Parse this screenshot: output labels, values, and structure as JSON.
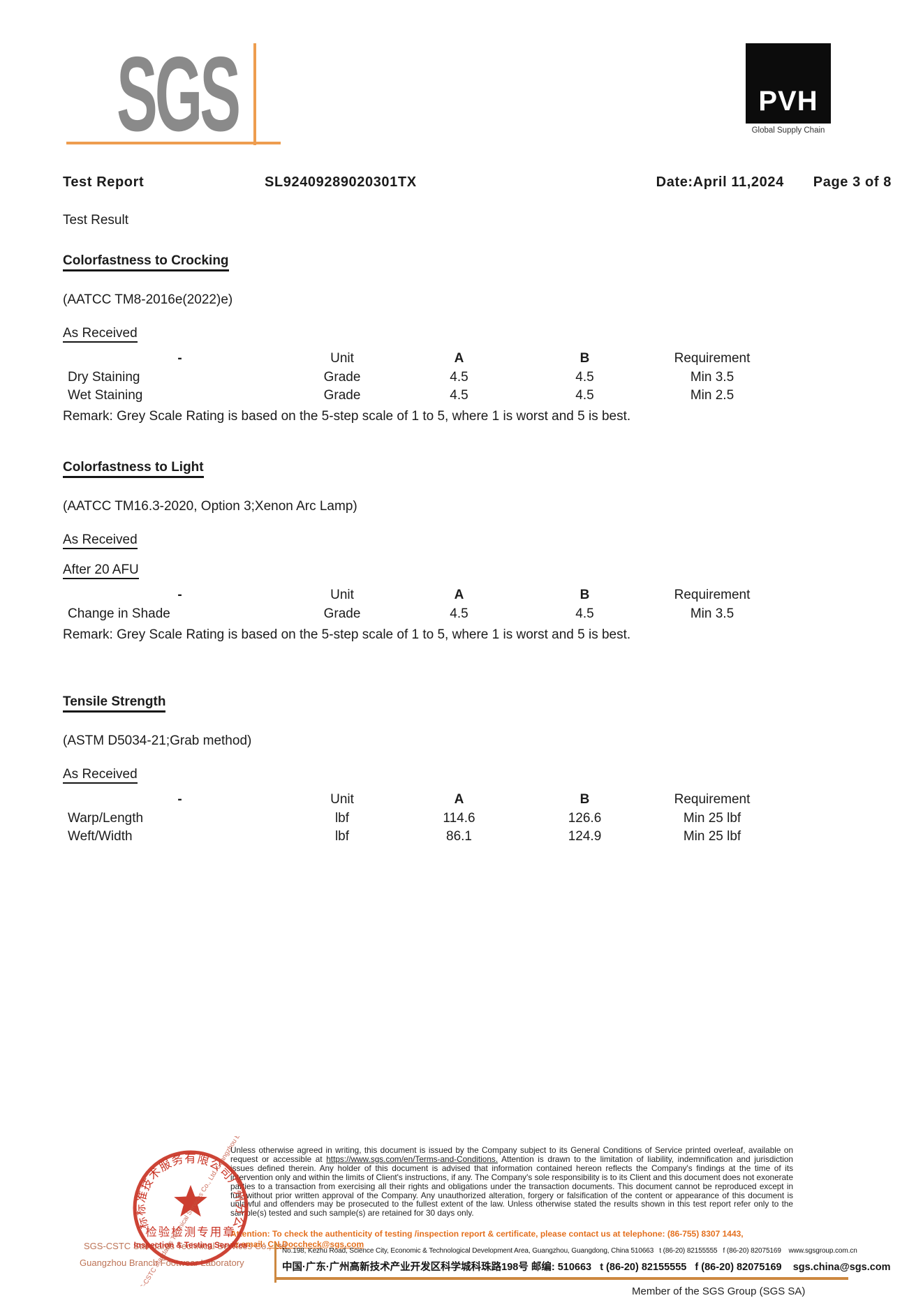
{
  "colors": {
    "sgs_gray": "#8a8a8a",
    "logo_orange": "#ee9d4f",
    "attention_orange": "#e4701e",
    "rule_orange": "#cd8840",
    "stamp_red": "#c93425",
    "company_tan": "#bd7356"
  },
  "logos": {
    "sgs_text": "SGS",
    "pvh_text": "PVH",
    "pvh_tagline": "Global Supply Chain"
  },
  "header": {
    "title": "Test Report",
    "report_no": "SL92409289020301TX",
    "date": "Date:April 11,2024",
    "page": "Page 3 of 8"
  },
  "result_label": "Test Result",
  "sections": [
    {
      "id": "colorfastness-to-crocking",
      "heading": "Colorfastness to Crocking",
      "method": "(AATCC TM8-2016e(2022)e)",
      "condition": "As Received",
      "subcondition": "",
      "table": {
        "headers": [
          "-",
          "Unit",
          "A",
          "B",
          "Requirement"
        ],
        "rows": [
          [
            "Dry Staining",
            "Grade",
            "4.5",
            "4.5",
            "Min 3.5"
          ],
          [
            "Wet Staining",
            "Grade",
            "4.5",
            "4.5",
            "Min 2.5"
          ]
        ]
      },
      "remark": "Remark: Grey Scale Rating is based on the 5-step scale of 1 to 5, where 1 is worst and 5 is best."
    },
    {
      "id": "colorfastness-to-light",
      "heading": "Colorfastness to Light",
      "method": "(AATCC TM16.3-2020, Option 3;Xenon Arc Lamp)",
      "condition": "As Received",
      "subcondition": "After 20 AFU",
      "table": {
        "headers": [
          "-",
          "Unit",
          "A",
          "B",
          "Requirement"
        ],
        "rows": [
          [
            "Change in Shade",
            "Grade",
            "4.5",
            "4.5",
            "Min 3.5"
          ]
        ]
      },
      "remark": "Remark: Grey Scale Rating is based on the 5-step scale of 1 to 5, where 1 is worst and 5 is best."
    },
    {
      "id": "tensile-strength",
      "heading": "Tensile Strength",
      "method": "(ASTM D5034-21;Grab method)",
      "condition": "As Received",
      "subcondition": "",
      "table": {
        "headers": [
          "-",
          "Unit",
          "A",
          "B",
          "Requirement"
        ],
        "rows": [
          [
            "Warp/Length",
            "lbf",
            "114.6",
            "126.6",
            "Min 25 lbf"
          ],
          [
            "Weft/Width",
            "lbf",
            "86.1",
            "124.9",
            "Min 25 lbf"
          ]
        ]
      },
      "remark": ""
    }
  ],
  "footer": {
    "terms_before": "Unless otherwise agreed in writing, this document is issued by the Company subject to its General Conditions of Service printed overleaf, available on request or accessible at ",
    "terms_link": "https://www.sgs.com/en/Terms-and-Conditions.",
    "terms_after": " Attention is drawn to the limitation of liability, indemnification and jurisdiction issues defined therein. Any holder of this document is advised that information contained hereon reflects the Company's findings at the time of its intervention only and within the limits of Client's instructions, if any. The Company's sole responsibility is to its Client and this document does not exonerate parties to a transaction from exercising all their rights and obligations under the transaction documents. This document cannot be reproduced except in full, without prior written approval of the Company. Any unauthorized alteration, forgery or falsification of the content or appearance of this document is unlawful and offenders may be prosecuted to the fullest extent of the law. Unless otherwise stated the results shown in this test report refer only to the sample(s) tested and such sample(s) are retained for 30 days only.",
    "attention_line": "Attention: To check the authenticity of testing /inspection report & certificate, please contact us at telephone: (86-755) 8307 1443,",
    "email_prefix": "or email: ",
    "email": "CN.Doccheck@sgs.com",
    "address_en": "No.198, Kezhu Road, Science City, Economic & Technological Development Area, Guangzhou, Guangdong, China 510663   t (86-20) 82155555   f (86-20) 82075169    www.sgsgroup.com.cn",
    "address_cn": "中国·广东·广州高新技术产业开发区科学城科珠路198号 邮编: 510663   t (86-20) 82155555   f (86-20) 82075169    sgs.china@sgs.com",
    "member": "Member of the SGS Group (SGS SA)",
    "stamp": {
      "ring_text": "通标标准技术服务有限公司广州分公司",
      "seal_line1": "检验检测专用章",
      "seal_line2": "Inspection & Testing Services",
      "diagonal_text": "SGS-CSTC Standards Technical Services Co., Ltd. Guangzhou Branch",
      "company_line1": "SGS-CSTC Standards Technical Services Co., Ltd.",
      "company_line2": "Guangzhou Branch Footwear Laboratory"
    }
  }
}
